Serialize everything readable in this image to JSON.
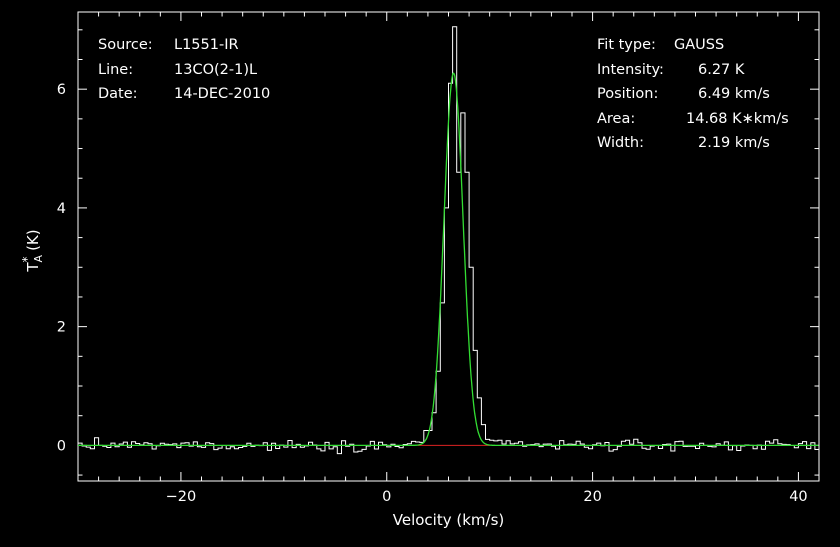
{
  "header": {
    "source_label": "Source:",
    "source_value": "L1551-IR",
    "line_label": "Line:",
    "line_value": "13CO(2-1)L",
    "date_label": "Date:",
    "date_value": "14-DEC-2010"
  },
  "fit": {
    "type_label": "Fit type:",
    "type_value": "GAUSS",
    "intensity_label": "Intensity:",
    "intensity_value": "6.27 K",
    "position_label": "Position:",
    "position_value": "6.49 km/s",
    "area_label": "Area:",
    "area_value": "14.68 K∗km/s",
    "width_label": "Width:",
    "width_value": "2.19 km/s"
  },
  "colors": {
    "background": "#000000",
    "spectrum": "#ffffff",
    "fit": "#33dd33",
    "baseline": "#dd2222",
    "axes": "#ffffff"
  },
  "chart_data": {
    "type": "line",
    "xlabel": "Velocity (km/s)",
    "ylabel_main": "T",
    "ylabel_sup": "*",
    "ylabel_sub": "A",
    "ylabel_unit": "(K)",
    "xlim": [
      -30,
      42
    ],
    "ylim": [
      -0.6,
      7.3
    ],
    "x_ticks": [
      -20,
      0,
      20,
      40
    ],
    "x_tick_labels": [
      "−20",
      "0",
      "20",
      "40"
    ],
    "y_ticks": [
      0,
      2,
      4,
      6
    ],
    "y_tick_labels": [
      "0",
      "2",
      "4",
      "6"
    ],
    "x_minor_step": 2,
    "y_minor_step": 0.5,
    "grid": false,
    "spectrum_channel_width": 0.4,
    "spectrum_line_profile": [
      {
        "x": 3.5,
        "y": 0.05
      },
      {
        "x": 4.0,
        "y": 0.25
      },
      {
        "x": 4.4,
        "y": 0.55
      },
      {
        "x": 4.8,
        "y": 1.25
      },
      {
        "x": 5.2,
        "y": 2.4
      },
      {
        "x": 5.6,
        "y": 4.0
      },
      {
        "x": 6.0,
        "y": 6.1
      },
      {
        "x": 6.4,
        "y": 7.05
      },
      {
        "x": 6.8,
        "y": 4.6
      },
      {
        "x": 7.2,
        "y": 5.6
      },
      {
        "x": 7.6,
        "y": 4.6
      },
      {
        "x": 8.0,
        "y": 3.0
      },
      {
        "x": 8.4,
        "y": 1.6
      },
      {
        "x": 8.8,
        "y": 0.8
      },
      {
        "x": 9.2,
        "y": 0.35
      },
      {
        "x": 9.6,
        "y": 0.1
      }
    ],
    "spectrum_noise_rms": 0.07,
    "gaussian_fit": {
      "amplitude": 6.27,
      "center": 6.49,
      "fwhm": 2.19
    },
    "baseline_range": [
      3.0,
      10.0
    ]
  }
}
